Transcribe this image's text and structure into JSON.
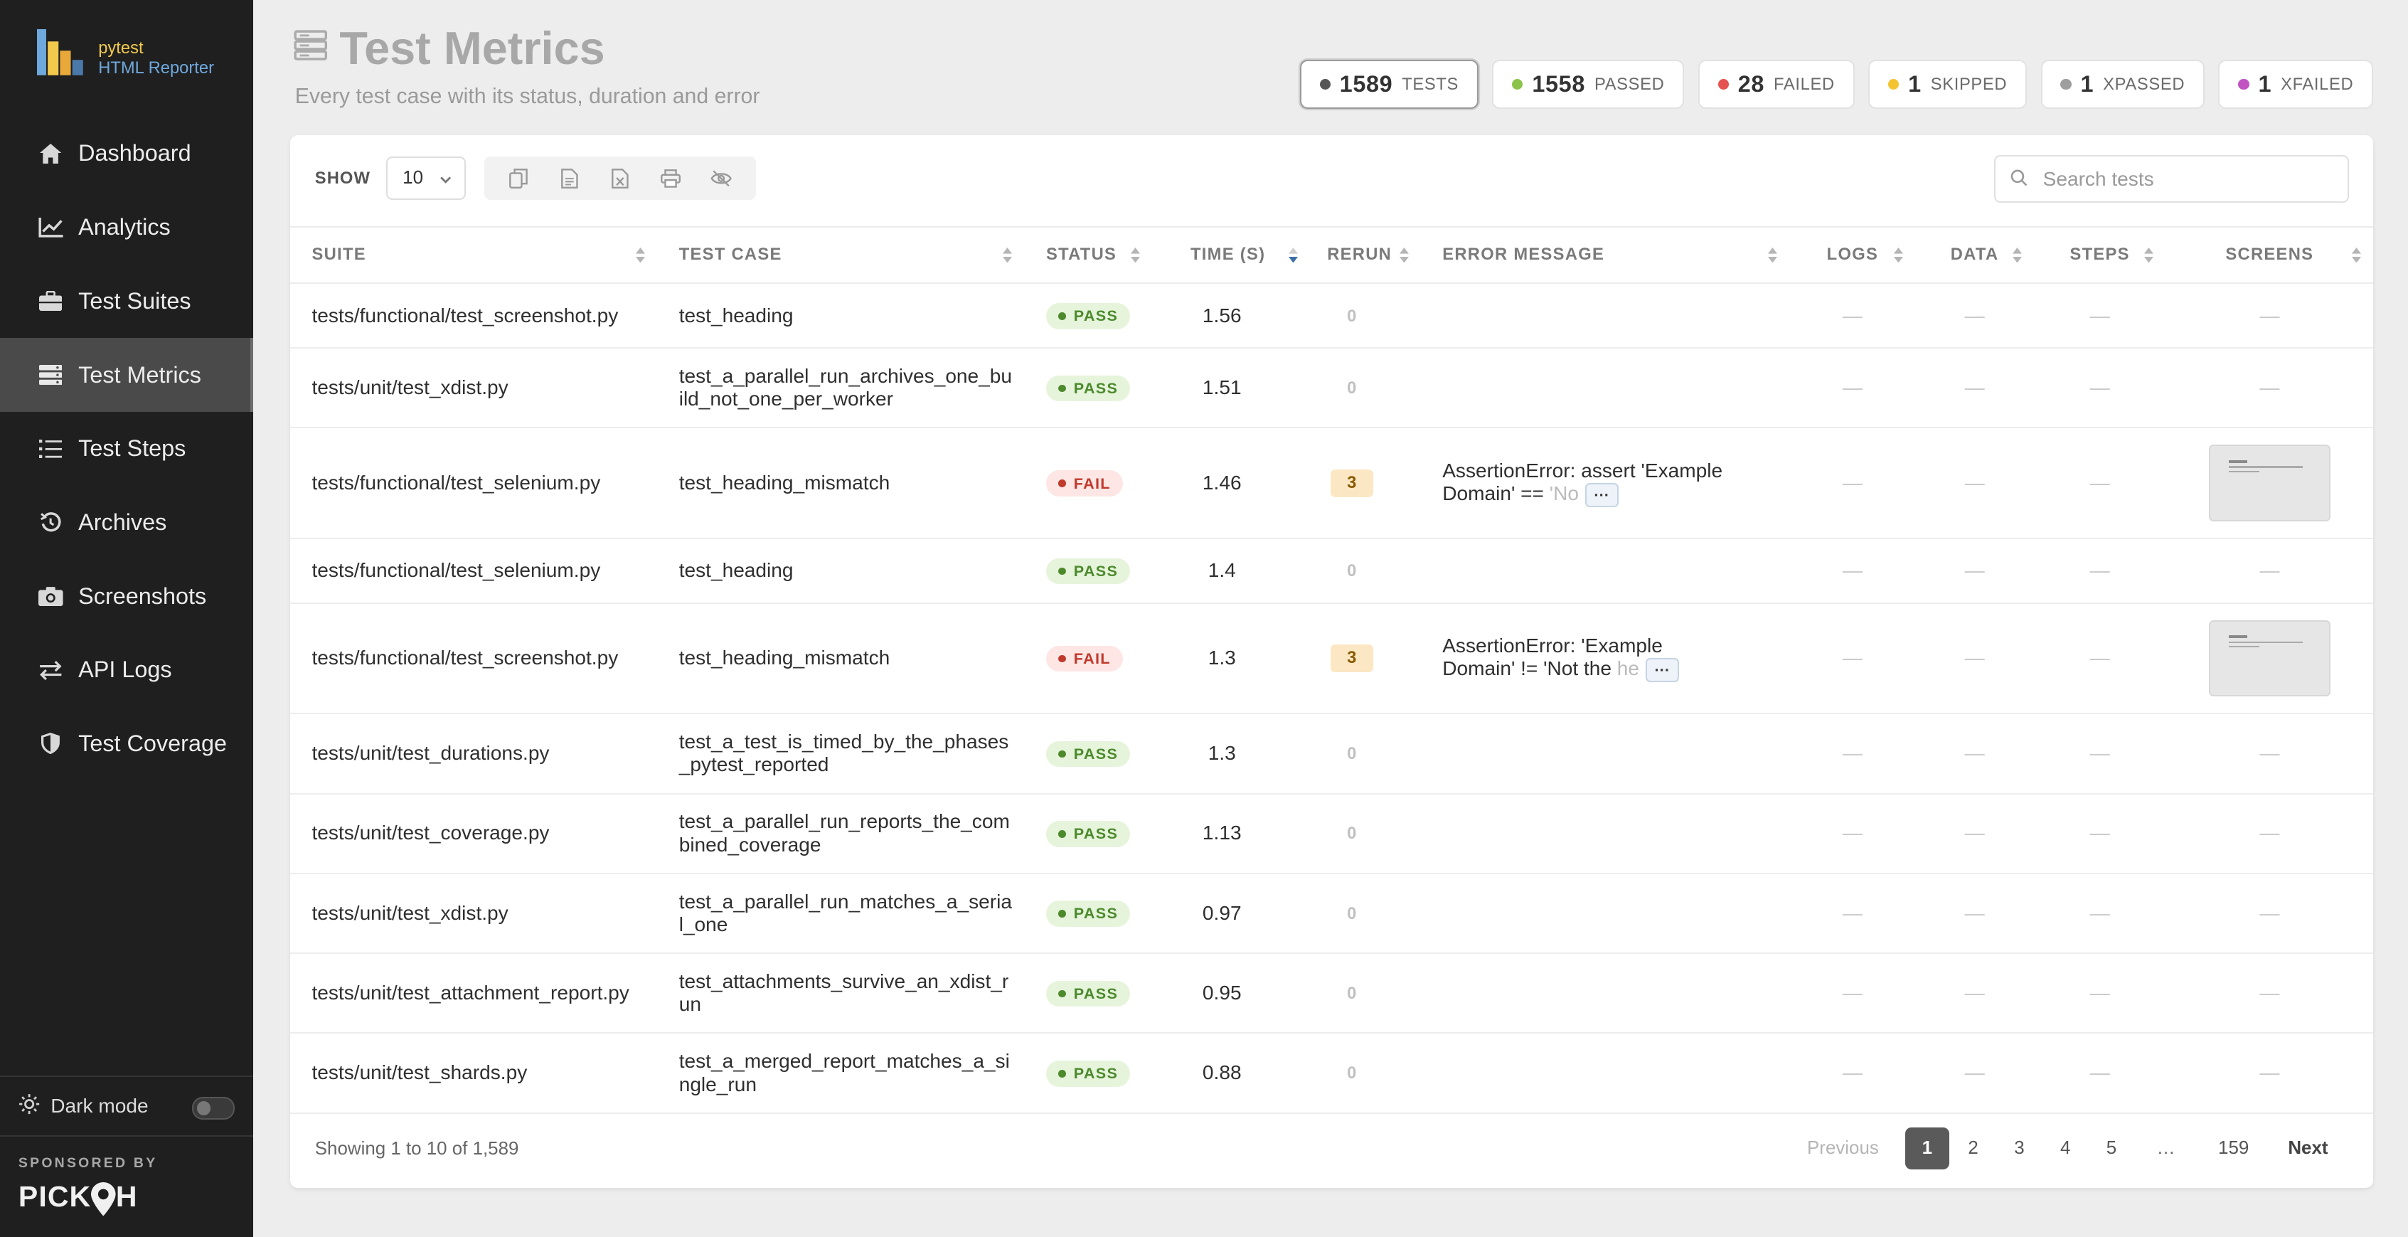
{
  "app": {
    "logo_line1": "pytest",
    "logo_line2": "HTML Reporter"
  },
  "sidebar": {
    "items": [
      {
        "label": "Dashboard",
        "icon": "home-icon"
      },
      {
        "label": "Analytics",
        "icon": "chart-line-icon"
      },
      {
        "label": "Test Suites",
        "icon": "briefcase-icon"
      },
      {
        "label": "Test Metrics",
        "icon": "server-icon",
        "active": true
      },
      {
        "label": "Test Steps",
        "icon": "list-icon"
      },
      {
        "label": "Archives",
        "icon": "history-icon"
      },
      {
        "label": "Screenshots",
        "icon": "camera-icon"
      },
      {
        "label": "API Logs",
        "icon": "exchange-icon"
      },
      {
        "label": "Test Coverage",
        "icon": "shield-icon"
      }
    ],
    "dark_mode_label": "Dark mode",
    "dark_mode_on": false,
    "sponsored_by": "SPONSORED BY",
    "sponsor_name_a": "PICK",
    "sponsor_name_b": "H"
  },
  "header": {
    "title": "Test Metrics",
    "subtitle": "Every test case with its status, duration and error"
  },
  "stats": [
    {
      "count": "1589",
      "label": "TESTS",
      "color": "#555555",
      "active": true
    },
    {
      "count": "1558",
      "label": "PASSED",
      "color": "#8bc34a"
    },
    {
      "count": "28",
      "label": "FAILED",
      "color": "#e55353"
    },
    {
      "count": "1",
      "label": "SKIPPED",
      "color": "#f4c430"
    },
    {
      "count": "1",
      "label": "XPASSED",
      "color": "#9e9e9e"
    },
    {
      "count": "1",
      "label": "XFAILED",
      "color": "#c154c1"
    }
  ],
  "toolbar": {
    "show_label": "SHOW",
    "page_size": "10",
    "search_placeholder": "Search tests"
  },
  "table": {
    "columns": [
      "SUITE",
      "TEST CASE",
      "STATUS",
      "TIME (S)",
      "RERUN",
      "ERROR MESSAGE",
      "LOGS",
      "DATA",
      "STEPS",
      "SCREENS"
    ],
    "dash": "—",
    "rows": [
      {
        "suite": "tests/functional/test_screenshot.py",
        "test": "test_heading",
        "status": "PASS",
        "time": "1.56",
        "rerun": "0",
        "error_a": "",
        "error_b": ""
      },
      {
        "suite": "tests/unit/test_xdist.py",
        "test": "test_a_parallel_run_archives_one_bu ild_not_one_per_worker",
        "status": "PASS",
        "time": "1.51",
        "rerun": "0",
        "error_a": "",
        "error_b": ""
      },
      {
        "suite": "tests/functional/test_selenium.py",
        "test": "test_heading_mismatch",
        "status": "FAIL",
        "time": "1.46",
        "rerun": "3",
        "error_a": "AssertionError: assert 'Example Domain' == ",
        "error_b": "'No",
        "screen": true
      },
      {
        "suite": "tests/functional/test_selenium.py",
        "test": "test_heading",
        "status": "PASS",
        "time": "1.4",
        "rerun": "0",
        "error_a": "",
        "error_b": ""
      },
      {
        "suite": "tests/functional/test_screenshot.py",
        "test": "test_heading_mismatch",
        "status": "FAIL",
        "time": "1.3",
        "rerun": "3",
        "error_a": "AssertionError: 'Example Domain' != 'Not the ",
        "error_b": "he",
        "screen": true
      },
      {
        "suite": "tests/unit/test_durations.py",
        "test": "test_a_test_is_timed_by_the_phases _pytest_reported",
        "status": "PASS",
        "time": "1.3",
        "rerun": "0",
        "error_a": "",
        "error_b": ""
      },
      {
        "suite": "tests/unit/test_coverage.py",
        "test": "test_a_parallel_run_reports_the_com bined_coverage",
        "status": "PASS",
        "time": "1.13",
        "rerun": "0",
        "error_a": "",
        "error_b": ""
      },
      {
        "suite": "tests/unit/test_xdist.py",
        "test": "test_a_parallel_run_matches_a_seria l_one",
        "status": "PASS",
        "time": "0.97",
        "rerun": "0",
        "error_a": "",
        "error_b": ""
      },
      {
        "suite": "tests/unit/test_attachment_report.py",
        "test": "test_attachments_survive_an_xdist_r un",
        "status": "PASS",
        "time": "0.95",
        "rerun": "0",
        "error_a": "",
        "error_b": ""
      },
      {
        "suite": "tests/unit/test_shards.py",
        "test": "test_a_merged_report_matches_a_si ngle_run",
        "status": "PASS",
        "time": "0.88",
        "rerun": "0",
        "error_a": "",
        "error_b": ""
      }
    ]
  },
  "footer": {
    "info": "Showing 1 to 10 of 1,589",
    "pagination": {
      "previous": "Previous",
      "pages": [
        "1",
        "2",
        "3",
        "4",
        "5"
      ],
      "current": "1",
      "ellipsis": "…",
      "last": "159",
      "next": "Next"
    }
  }
}
